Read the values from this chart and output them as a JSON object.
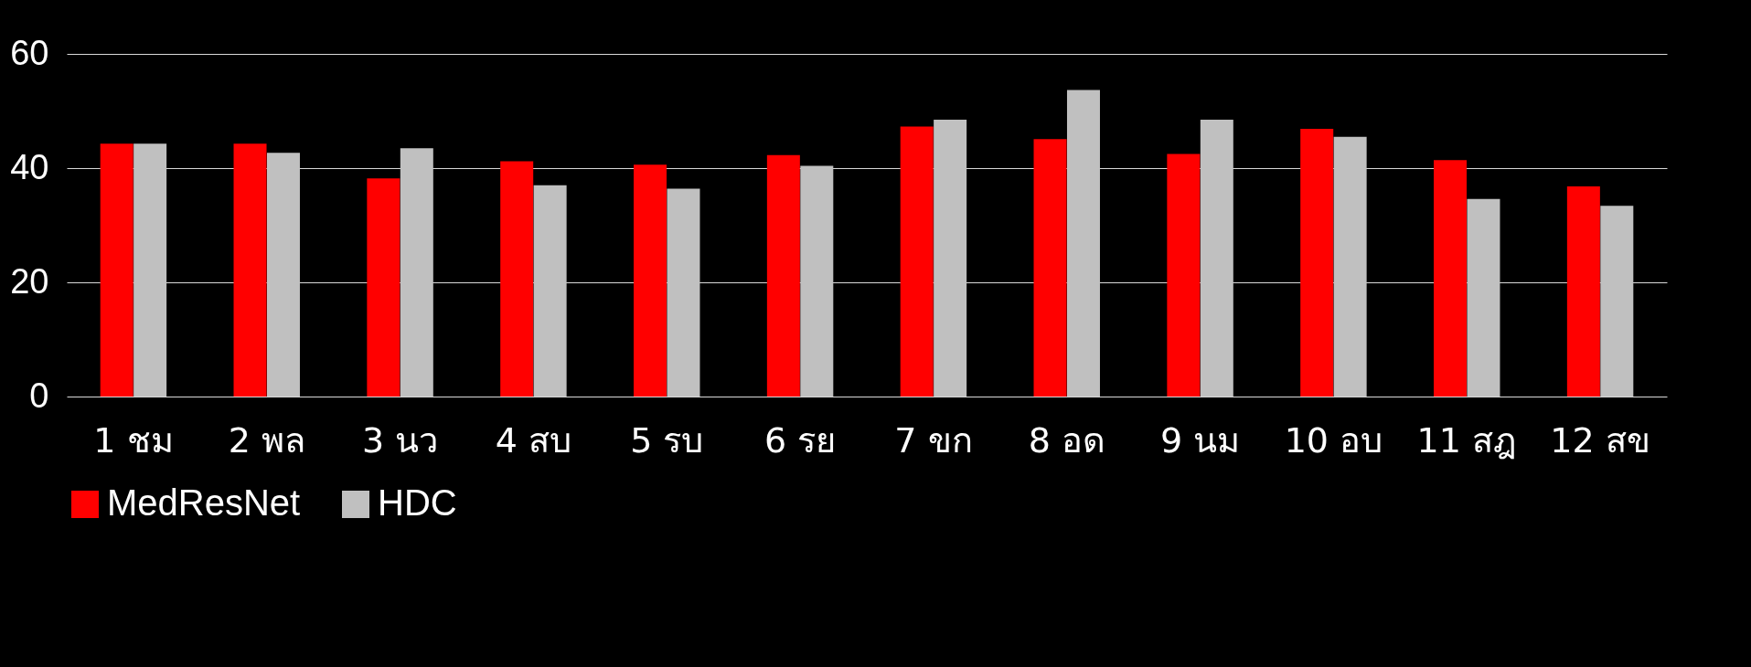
{
  "chart_data": {
    "type": "bar",
    "categories": [
      "1 ชม",
      "2 พล",
      "3 นว",
      "4 สบ",
      "5 รบ",
      "6 รย",
      "7 ขก",
      "8 อด",
      "9 นม",
      "10 อบ",
      "11 สฎ",
      "12 สข"
    ],
    "series": [
      {
        "name": "MedResNet",
        "color": "#ff0000",
        "values": [
          44.3,
          44.3,
          38.2,
          41.2,
          40.6,
          42.3,
          47.3,
          45.1,
          42.5,
          46.9,
          41.4,
          36.8
        ]
      },
      {
        "name": "HDC",
        "color": "#c0c0c0",
        "values": [
          44.3,
          42.7,
          43.5,
          37.0,
          36.4,
          40.4,
          48.5,
          53.7,
          48.5,
          45.5,
          34.6,
          33.4
        ]
      }
    ],
    "ylim": [
      0,
      60
    ],
    "yticks": [
      0,
      20,
      40,
      60
    ],
    "grid": "y",
    "legend": "bottom"
  }
}
